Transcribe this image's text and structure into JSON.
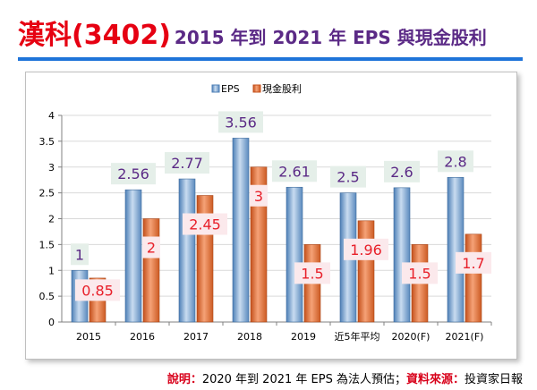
{
  "title": {
    "main": "漢科(3402)",
    "sub": "2015 年到 2021 年 EPS 與現金股利"
  },
  "note": {
    "label1": "說明：",
    "text1": "2020 年到 2021 年 EPS 為法人預估；",
    "label2": "資料來源：",
    "text2": "投資家日報"
  },
  "colors": {
    "eps": "#6f9ccc",
    "dividend": "#e2733a",
    "eps_label": "#5b2a86",
    "dividend_label": "#e8202a"
  },
  "chart_data": {
    "type": "bar",
    "title": "",
    "xlabel": "",
    "ylabel": "",
    "ylim": [
      0,
      4
    ],
    "yticks": [
      "0",
      "0.5",
      "1",
      "1.5",
      "2",
      "2.5",
      "3",
      "3.5",
      "4"
    ],
    "grid": true,
    "legend_position": "top-center",
    "categories": [
      "2015",
      "2016",
      "2017",
      "2018",
      "2019",
      "近5年平均",
      "2020(F)",
      "2021(F)"
    ],
    "series": [
      {
        "name": "EPS",
        "values": [
          1,
          2.56,
          2.77,
          3.56,
          2.61,
          2.5,
          2.6,
          2.8
        ],
        "labels": [
          "1",
          "2.56",
          "2.77",
          "3.56",
          "2.61",
          "2.5",
          "2.6",
          "2.8"
        ]
      },
      {
        "name": "現金股利",
        "values": [
          0.85,
          2,
          2.45,
          3,
          1.5,
          1.96,
          1.5,
          1.7
        ],
        "labels": [
          "0.85",
          "2",
          "2.45",
          "3",
          "1.5",
          "1.96",
          "1.5",
          "1.7"
        ]
      }
    ]
  }
}
